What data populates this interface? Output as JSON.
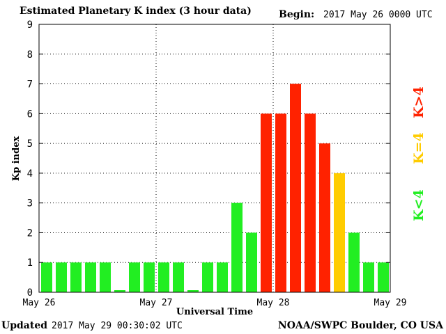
{
  "header": {
    "title": "Estimated Planetary K index (3 hour data)",
    "begin_label": "Begin:",
    "begin_value": "2017 May 26 0000 UTC"
  },
  "footer": {
    "updated_label": "Updated",
    "updated_value": "2017 May 29 00:30:02 UTC",
    "credit": "NOAA/SWPC Boulder, CO USA"
  },
  "colors": {
    "below_4": "#22ee22",
    "equal_4": "#ffcc00",
    "above_4": "#ff2200"
  },
  "chart_data": {
    "type": "bar",
    "title": "Estimated Planetary K index (3 hour data)",
    "xlabel": "Universal Time",
    "ylabel": "Kp index",
    "ylim": [
      0,
      9
    ],
    "yticks": [
      0,
      1,
      2,
      3,
      4,
      5,
      6,
      7,
      8,
      9
    ],
    "xtick_labels": [
      "May 26",
      "May 27",
      "May 28",
      "May 29"
    ],
    "interval_hours": 3,
    "values": [
      1,
      1,
      1,
      1,
      1,
      0,
      1,
      1,
      1,
      1,
      0,
      1,
      1,
      3,
      2,
      6,
      6,
      7,
      6,
      5,
      4,
      2,
      1,
      1
    ],
    "grid": true,
    "legend": [
      {
        "label": "K<4",
        "color": "#22ee22"
      },
      {
        "label": "K=4",
        "color": "#ffcc00"
      },
      {
        "label": "K>4",
        "color": "#ff2200"
      }
    ],
    "legend_position": "right"
  }
}
